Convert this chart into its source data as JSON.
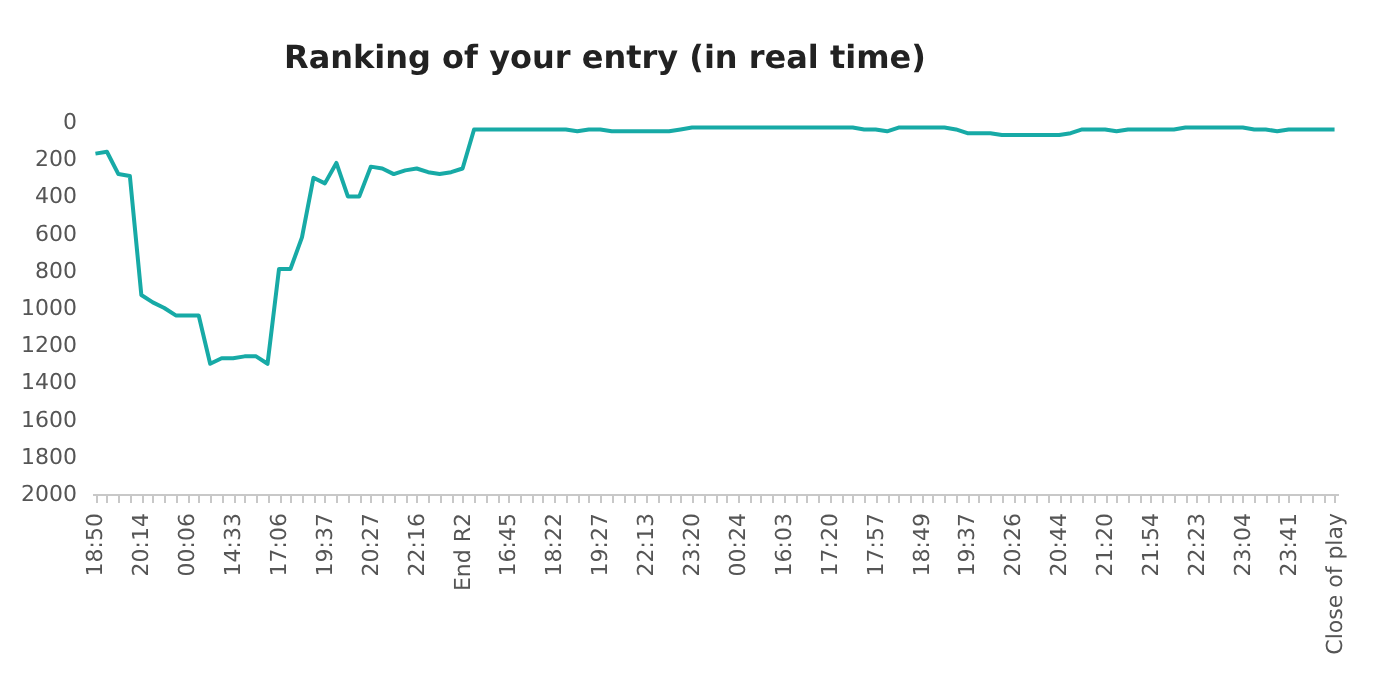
{
  "chart_data": {
    "type": "line",
    "title": "Ranking of your entry (in real time)",
    "categories": [
      "18:50",
      null,
      null,
      null,
      "20:14",
      null,
      null,
      null,
      "00:06",
      null,
      null,
      null,
      "14:33",
      null,
      null,
      null,
      "17:06",
      null,
      null,
      null,
      "19:37",
      null,
      null,
      null,
      "20:27",
      null,
      null,
      null,
      "22:16",
      null,
      null,
      null,
      "End R2",
      null,
      null,
      null,
      "16:45",
      null,
      null,
      null,
      "18:22",
      null,
      null,
      null,
      "19:27",
      null,
      null,
      null,
      "22:13",
      null,
      null,
      null,
      "23:20",
      null,
      null,
      null,
      "00:24",
      null,
      null,
      null,
      "16:03",
      null,
      null,
      null,
      "17:20",
      null,
      null,
      null,
      "17:57",
      null,
      null,
      null,
      "18:49",
      null,
      null,
      null,
      "19:37",
      null,
      null,
      null,
      "20:26",
      null,
      null,
      null,
      "20:44",
      null,
      null,
      null,
      "21:20",
      null,
      null,
      null,
      "21:54",
      null,
      null,
      null,
      "22:23",
      null,
      null,
      null,
      "23:04",
      null,
      null,
      null,
      "23:41",
      null,
      null,
      null,
      "Close of play"
    ],
    "series": [
      {
        "color": "#17aaa6",
        "values": [
          170,
          160,
          280,
          290,
          930,
          970,
          1000,
          1040,
          1040,
          1040,
          1300,
          1270,
          1270,
          1260,
          1260,
          1300,
          790,
          790,
          620,
          300,
          330,
          220,
          400,
          400,
          240,
          250,
          280,
          260,
          250,
          270,
          280,
          270,
          250,
          40,
          40,
          40,
          40,
          40,
          40,
          40,
          40,
          40,
          50,
          40,
          40,
          50,
          50,
          50,
          50,
          50,
          50,
          40,
          30,
          30,
          30,
          30,
          30,
          30,
          30,
          30,
          30,
          30,
          30,
          30,
          30,
          30,
          30,
          40,
          40,
          50,
          30,
          30,
          30,
          30,
          30,
          40,
          60,
          60,
          60,
          70,
          70,
          70,
          70,
          70,
          70,
          60,
          40,
          40,
          40,
          50,
          40,
          40,
          40,
          40,
          40,
          30,
          30,
          30,
          30,
          30,
          30,
          40,
          40,
          50,
          40,
          40,
          40,
          40,
          40
        ]
      }
    ],
    "ylim": [
      2000,
      0
    ],
    "yticks": [
      0,
      200,
      400,
      600,
      800,
      1000,
      1200,
      1400,
      1600,
      1800,
      2000
    ],
    "grid": false,
    "marker": "none",
    "line_style": "solid"
  }
}
